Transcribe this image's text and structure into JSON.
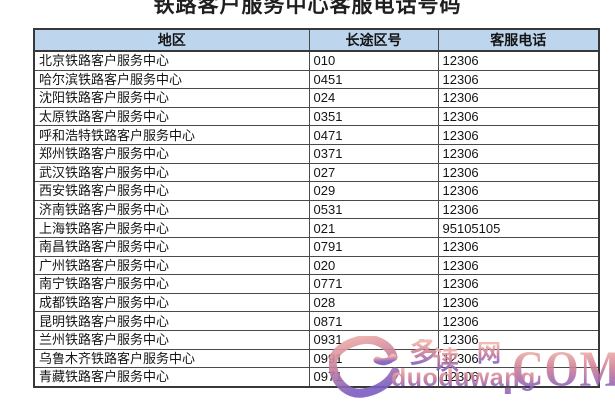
{
  "page": {
    "title": "铁路客户服务中心客服电话号码"
  },
  "table": {
    "headers": [
      "地区",
      "长途区号",
      "客服电话"
    ],
    "rows": [
      [
        "北京铁路客户服务中心",
        "010",
        "12306"
      ],
      [
        "哈尔滨铁路客户服务中心",
        "0451",
        "12306"
      ],
      [
        "沈阳铁路客户服务中心",
        "024",
        "12306"
      ],
      [
        "太原铁路客户服务中心",
        "0351",
        "12306"
      ],
      [
        "呼和浩特铁路客户服务中心",
        "0471",
        "12306"
      ],
      [
        "郑州铁路客户服务中心",
        "0371",
        "12306"
      ],
      [
        "武汉铁路客户服务中心",
        "027",
        "12306"
      ],
      [
        "西安铁路客户服务中心",
        "029",
        "12306"
      ],
      [
        "济南铁路客户服务中心",
        "0531",
        "12306"
      ],
      [
        "上海铁路客户服务中心",
        "021",
        "95105105"
      ],
      [
        "南昌铁路客户服务中心",
        "0791",
        "12306"
      ],
      [
        "广州铁路客户服务中心",
        "020",
        "12306"
      ],
      [
        "南宁铁路客户服务中心",
        "0771",
        "12306"
      ],
      [
        "成都铁路客户服务中心",
        "028",
        "12306"
      ],
      [
        "昆明铁路客户服务中心",
        "0871",
        "12306"
      ],
      [
        "兰州铁路客户服务中心",
        "0931",
        "12306"
      ],
      [
        "乌鲁木齐铁路客户服务中心",
        "0991",
        "12306"
      ],
      [
        "青藏铁路客户服务中心",
        "0971",
        "12306"
      ]
    ]
  },
  "watermark": {
    "char_duo": "多",
    "char_du": "读",
    "char_wang": "网",
    "site_name": "duoduwang",
    "dot": ".",
    "tld": "COM"
  },
  "colors": {
    "header_bg": "#bdd6ee",
    "table_border": "#404040",
    "watermark_pink": "#dd9aa5",
    "watermark_purple": "#7a5ec1"
  }
}
